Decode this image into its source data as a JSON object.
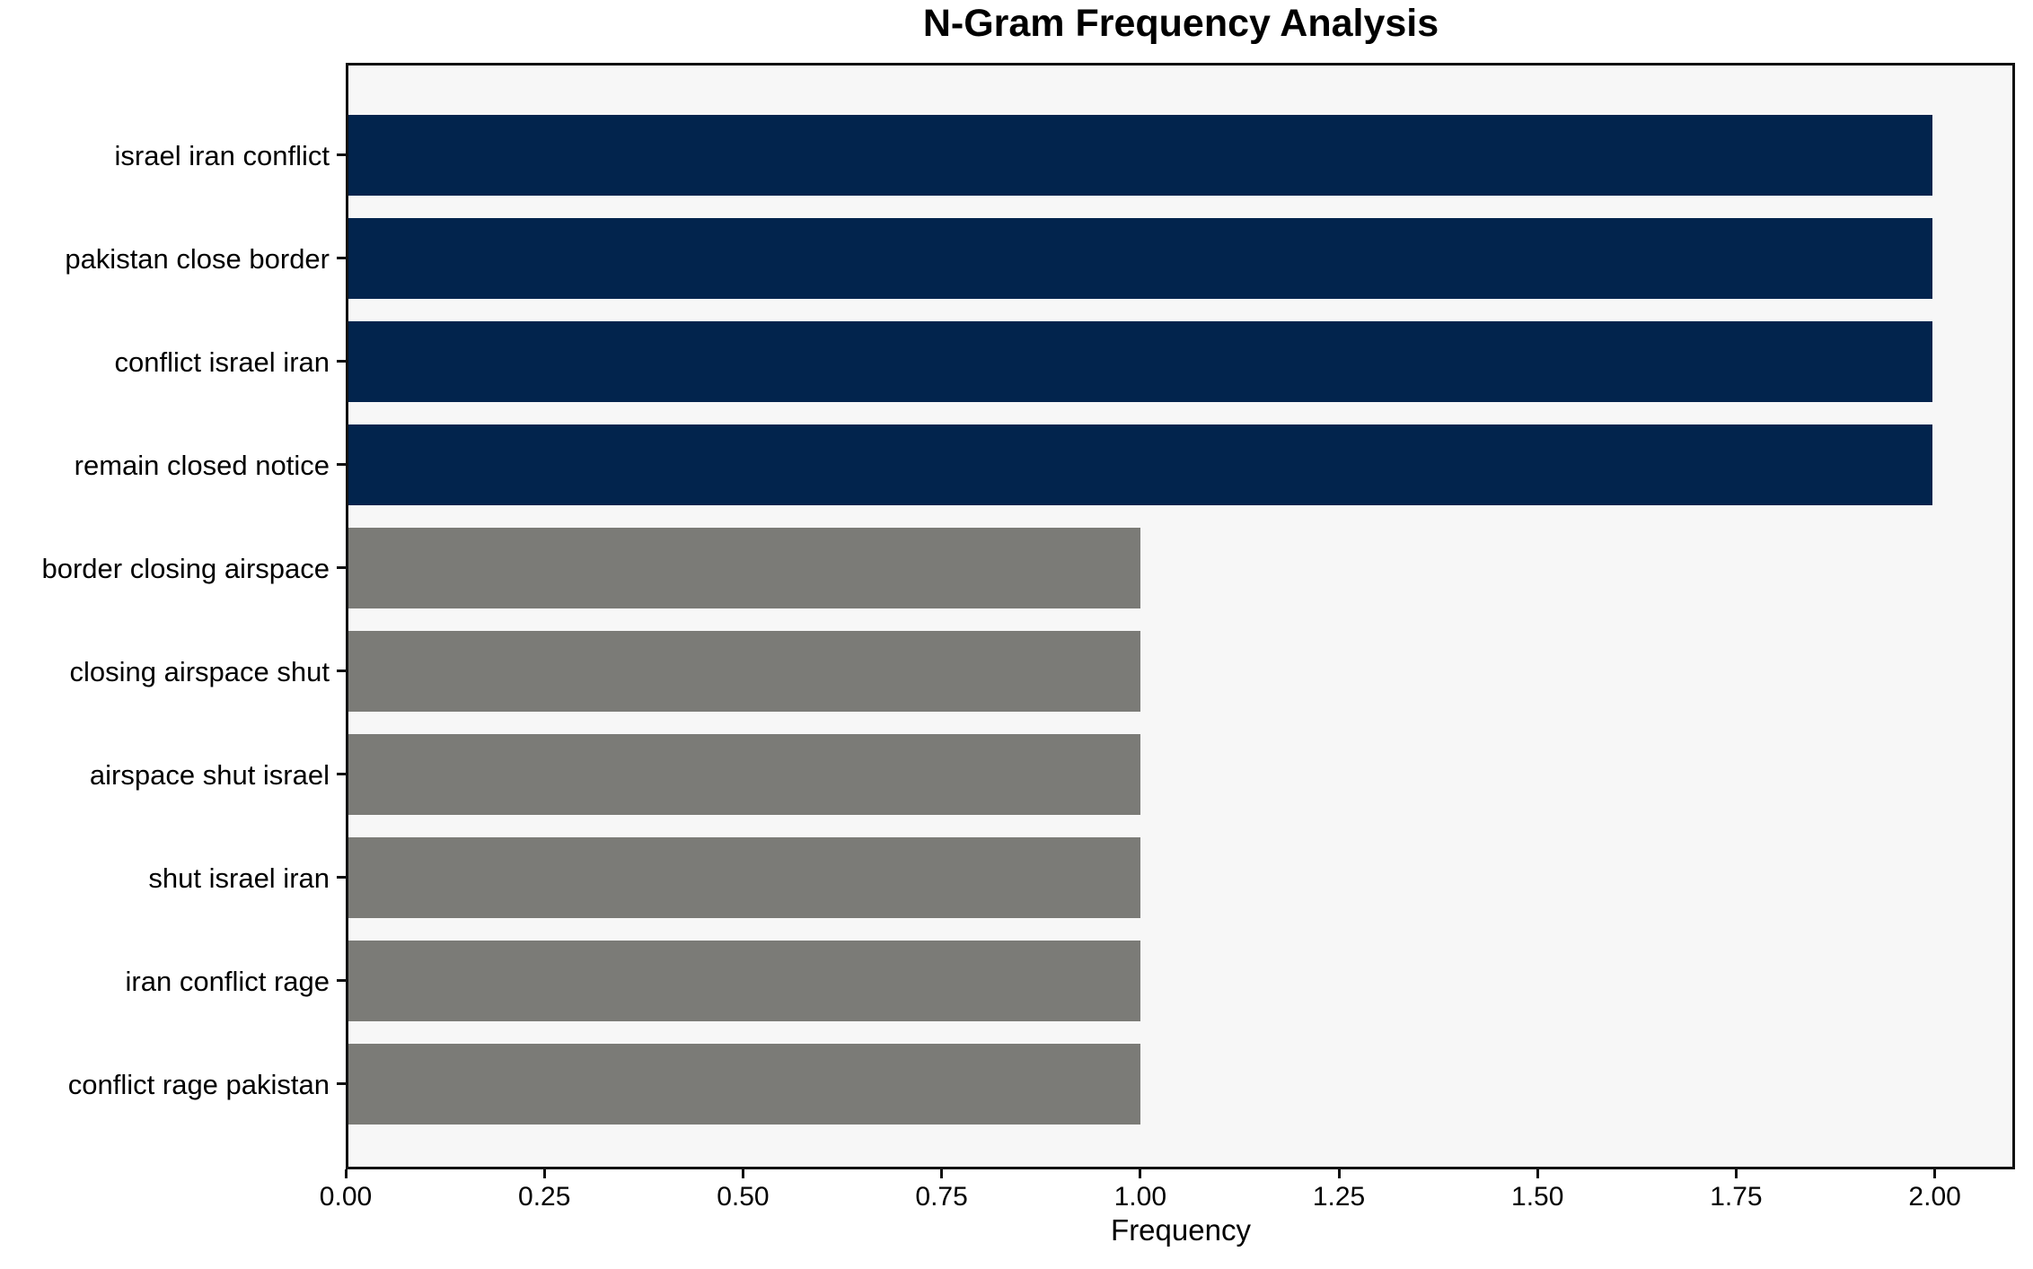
{
  "chart_data": {
    "type": "bar",
    "orientation": "horizontal",
    "title": "N-Gram Frequency Analysis",
    "xlabel": "Frequency",
    "ylabel": "",
    "categories": [
      "israel iran conflict",
      "pakistan close border",
      "conflict israel iran",
      "remain closed notice",
      "border closing airspace",
      "closing airspace shut",
      "airspace shut israel",
      "shut israel iran",
      "iran conflict rage",
      "conflict rage pakistan"
    ],
    "values": [
      2,
      2,
      2,
      2,
      1,
      1,
      1,
      1,
      1,
      1
    ],
    "bar_colors": [
      "#02244d",
      "#02244d",
      "#02244d",
      "#02244d",
      "#7b7b77",
      "#7b7b77",
      "#7b7b77",
      "#7b7b77",
      "#7b7b77",
      "#7b7b77"
    ],
    "xlim": [
      0,
      2.101
    ],
    "xticks": [
      0.0,
      0.25,
      0.5,
      0.75,
      1.0,
      1.25,
      1.5,
      1.75,
      2.0
    ],
    "xtick_labels": [
      "0.00",
      "0.25",
      "0.50",
      "0.75",
      "1.00",
      "1.25",
      "1.50",
      "1.75",
      "2.00"
    ],
    "grid": "off",
    "legend": "none",
    "colors": {
      "high_freq_bar": "#02244d",
      "low_freq_bar": "#7b7b77",
      "plot_background": "#f7f7f7",
      "figure_background": "#ffffff",
      "axis_spine": "#111111",
      "text": "#000000"
    }
  }
}
